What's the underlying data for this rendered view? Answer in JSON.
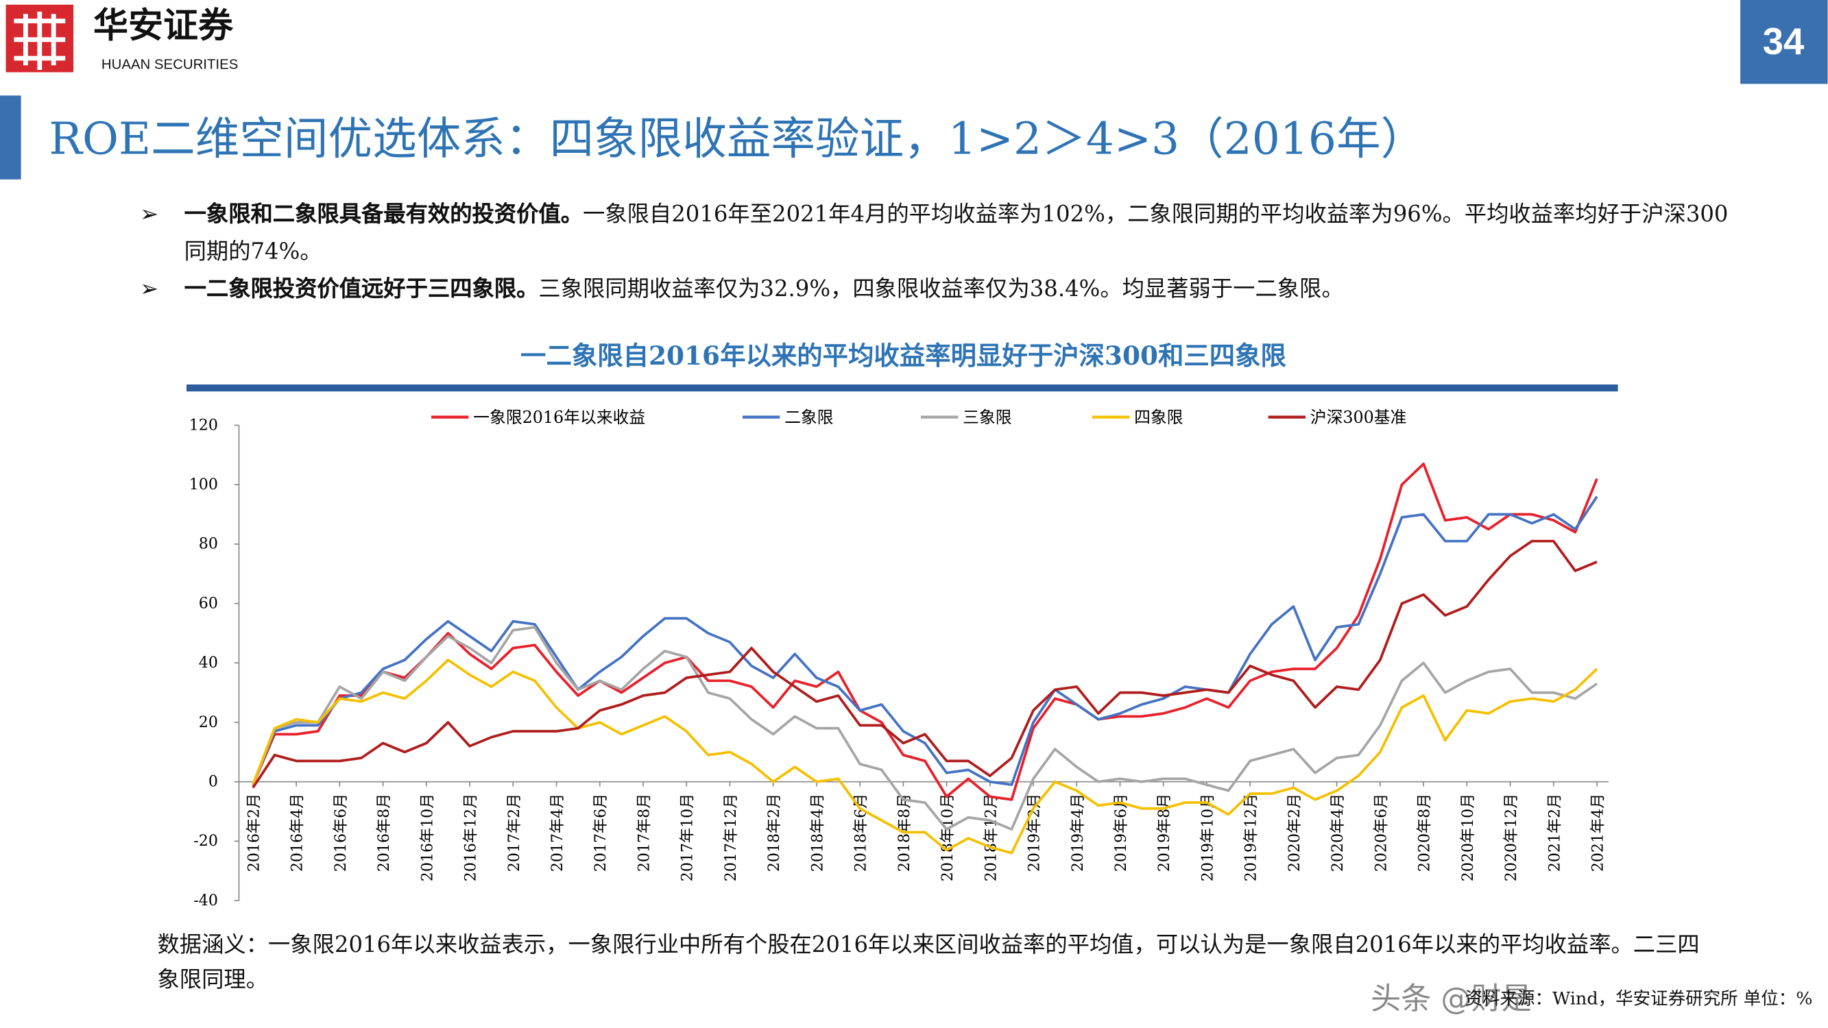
{
  "header": {
    "company_cn": "华安证券",
    "company_en": "HUAAN SECURITIES",
    "page_number": "34"
  },
  "title": "ROE二维空间优选体系：四象限收益率验证，1>2＞4>3（2016年）",
  "bullets": [
    {
      "bold": "一象限和二象限具备最有效的投资价值。",
      "text": "一象限自2016年至2021年4月的平均收益率为102%，二象限同期的平均收益率为96%。平均收益率均好于沪深300同期的74%。"
    },
    {
      "bold": "一二象限投资价值远好于三四象限。",
      "text": "三象限同期收益率仅为32.9%，四象限收益率仅为38.4%。均显著弱于一二象限。"
    }
  ],
  "chart_data": {
    "type": "line",
    "title": "一二象限自2016年以来的平均收益率明显好于沪深300和三四象限",
    "legend": "top",
    "categories": [
      "2016年2月",
      null,
      "2016年4月",
      null,
      "2016年6月",
      null,
      "2016年8月",
      null,
      "2016年10月",
      null,
      "2016年12月",
      null,
      "2017年2月",
      null,
      "2017年4月",
      null,
      "2017年6月",
      null,
      "2017年8月",
      null,
      "2017年10月",
      null,
      "2017年12月",
      null,
      "2018年2月",
      null,
      "2018年4月",
      null,
      "2018年6月",
      null,
      "2018年8月",
      null,
      "2018年10月",
      null,
      "2018年12月",
      null,
      "2019年2月",
      null,
      "2019年4月",
      null,
      "2019年6月",
      null,
      "2019年8月",
      null,
      "2019年10月",
      null,
      "2019年12月",
      null,
      "2020年2月",
      null,
      "2020年4月",
      null,
      "2020年6月",
      null,
      "2020年8月",
      null,
      "2020年10月",
      null,
      "2020年12月",
      null,
      "2021年2月",
      null,
      "2021年4月"
    ],
    "ylim": [
      -40,
      120
    ],
    "yticks": [
      -40,
      -20,
      0,
      20,
      40,
      60,
      80,
      100,
      120
    ],
    "series": [
      {
        "name": "一象限2016年以来收益",
        "color": "#e8202a",
        "values": [
          -1,
          16,
          16,
          17,
          29,
          29,
          37,
          35,
          42,
          50,
          43,
          38,
          45,
          46,
          37,
          29,
          34,
          30,
          35,
          40,
          42,
          34,
          34,
          32,
          25,
          34,
          32,
          37,
          24,
          20,
          9,
          7,
          -5,
          1,
          -5,
          -6,
          18,
          28,
          26,
          21,
          22,
          22,
          23,
          25,
          28,
          25,
          34,
          37,
          38,
          38,
          45,
          56,
          75,
          100,
          107,
          88,
          89,
          85,
          90,
          90,
          88,
          84,
          102
        ]
      },
      {
        "name": "二象限",
        "color": "#4472c4",
        "values": [
          -1,
          17,
          19,
          19,
          28,
          30,
          38,
          41,
          48,
          54,
          49,
          44,
          54,
          53,
          42,
          31,
          37,
          42,
          49,
          55,
          55,
          50,
          47,
          39,
          35,
          43,
          35,
          32,
          24,
          26,
          17,
          13,
          3,
          4,
          0,
          -1,
          20,
          31,
          26,
          21,
          23,
          26,
          28,
          32,
          31,
          30,
          43,
          53,
          59,
          41,
          52,
          53,
          70,
          89,
          90,
          81,
          81,
          90,
          90,
          87,
          90,
          85,
          96
        ]
      },
      {
        "name": "三象限",
        "color": "#a5a5a5",
        "values": [
          -1,
          18,
          20,
          20,
          32,
          28,
          37,
          34,
          42,
          49,
          45,
          40,
          51,
          52,
          40,
          31,
          34,
          31,
          38,
          44,
          42,
          30,
          28,
          21,
          16,
          22,
          18,
          18,
          6,
          4,
          -6,
          -7,
          -16,
          -12,
          -13,
          -16,
          1,
          11,
          5,
          0,
          1,
          0,
          1,
          1,
          -1,
          -3,
          7,
          9,
          11,
          3,
          8,
          9,
          19,
          34,
          40,
          30,
          34,
          37,
          38,
          30,
          30,
          28,
          33
        ]
      },
      {
        "name": "四象限",
        "color": "#f5c000",
        "values": [
          -1,
          18,
          21,
          20,
          28,
          27,
          30,
          28,
          34,
          41,
          36,
          32,
          37,
          34,
          25,
          18,
          20,
          16,
          19,
          22,
          17,
          9,
          10,
          6,
          0,
          5,
          0,
          1,
          -9,
          -13,
          -17,
          -17,
          -23,
          -19,
          -22,
          -24,
          -9,
          0,
          -3,
          -8,
          -7,
          -9,
          -9,
          -7,
          -7,
          -11,
          -4,
          -4,
          -2,
          -6,
          -3,
          2,
          10,
          25,
          29,
          14,
          24,
          23,
          27,
          28,
          27,
          31,
          38
        ]
      },
      {
        "name": "沪深300基准",
        "color": "#b01c1c",
        "values": [
          -2,
          9,
          7,
          7,
          7,
          8,
          13,
          10,
          13,
          20,
          12,
          15,
          17,
          17,
          17,
          18,
          24,
          26,
          29,
          30,
          35,
          36,
          37,
          45,
          37,
          32,
          27,
          29,
          19,
          19,
          13,
          16,
          7,
          7,
          2,
          8,
          24,
          31,
          32,
          23,
          30,
          30,
          29,
          30,
          31,
          30,
          39,
          36,
          34,
          25,
          32,
          31,
          41,
          60,
          63,
          56,
          59,
          68,
          76,
          81,
          81,
          71,
          74
        ]
      }
    ]
  },
  "footnote": "数据涵义：一象限2016年以来收益表示，一象限行业中所有个股在2016年以来区间收益率的平均值，可以认为是一象限自2016年以来的平均收益率。二三四象限同理。",
  "source": "资料来源：Wind，华安证券研究所 单位：%",
  "watermark": "头条 @财是"
}
